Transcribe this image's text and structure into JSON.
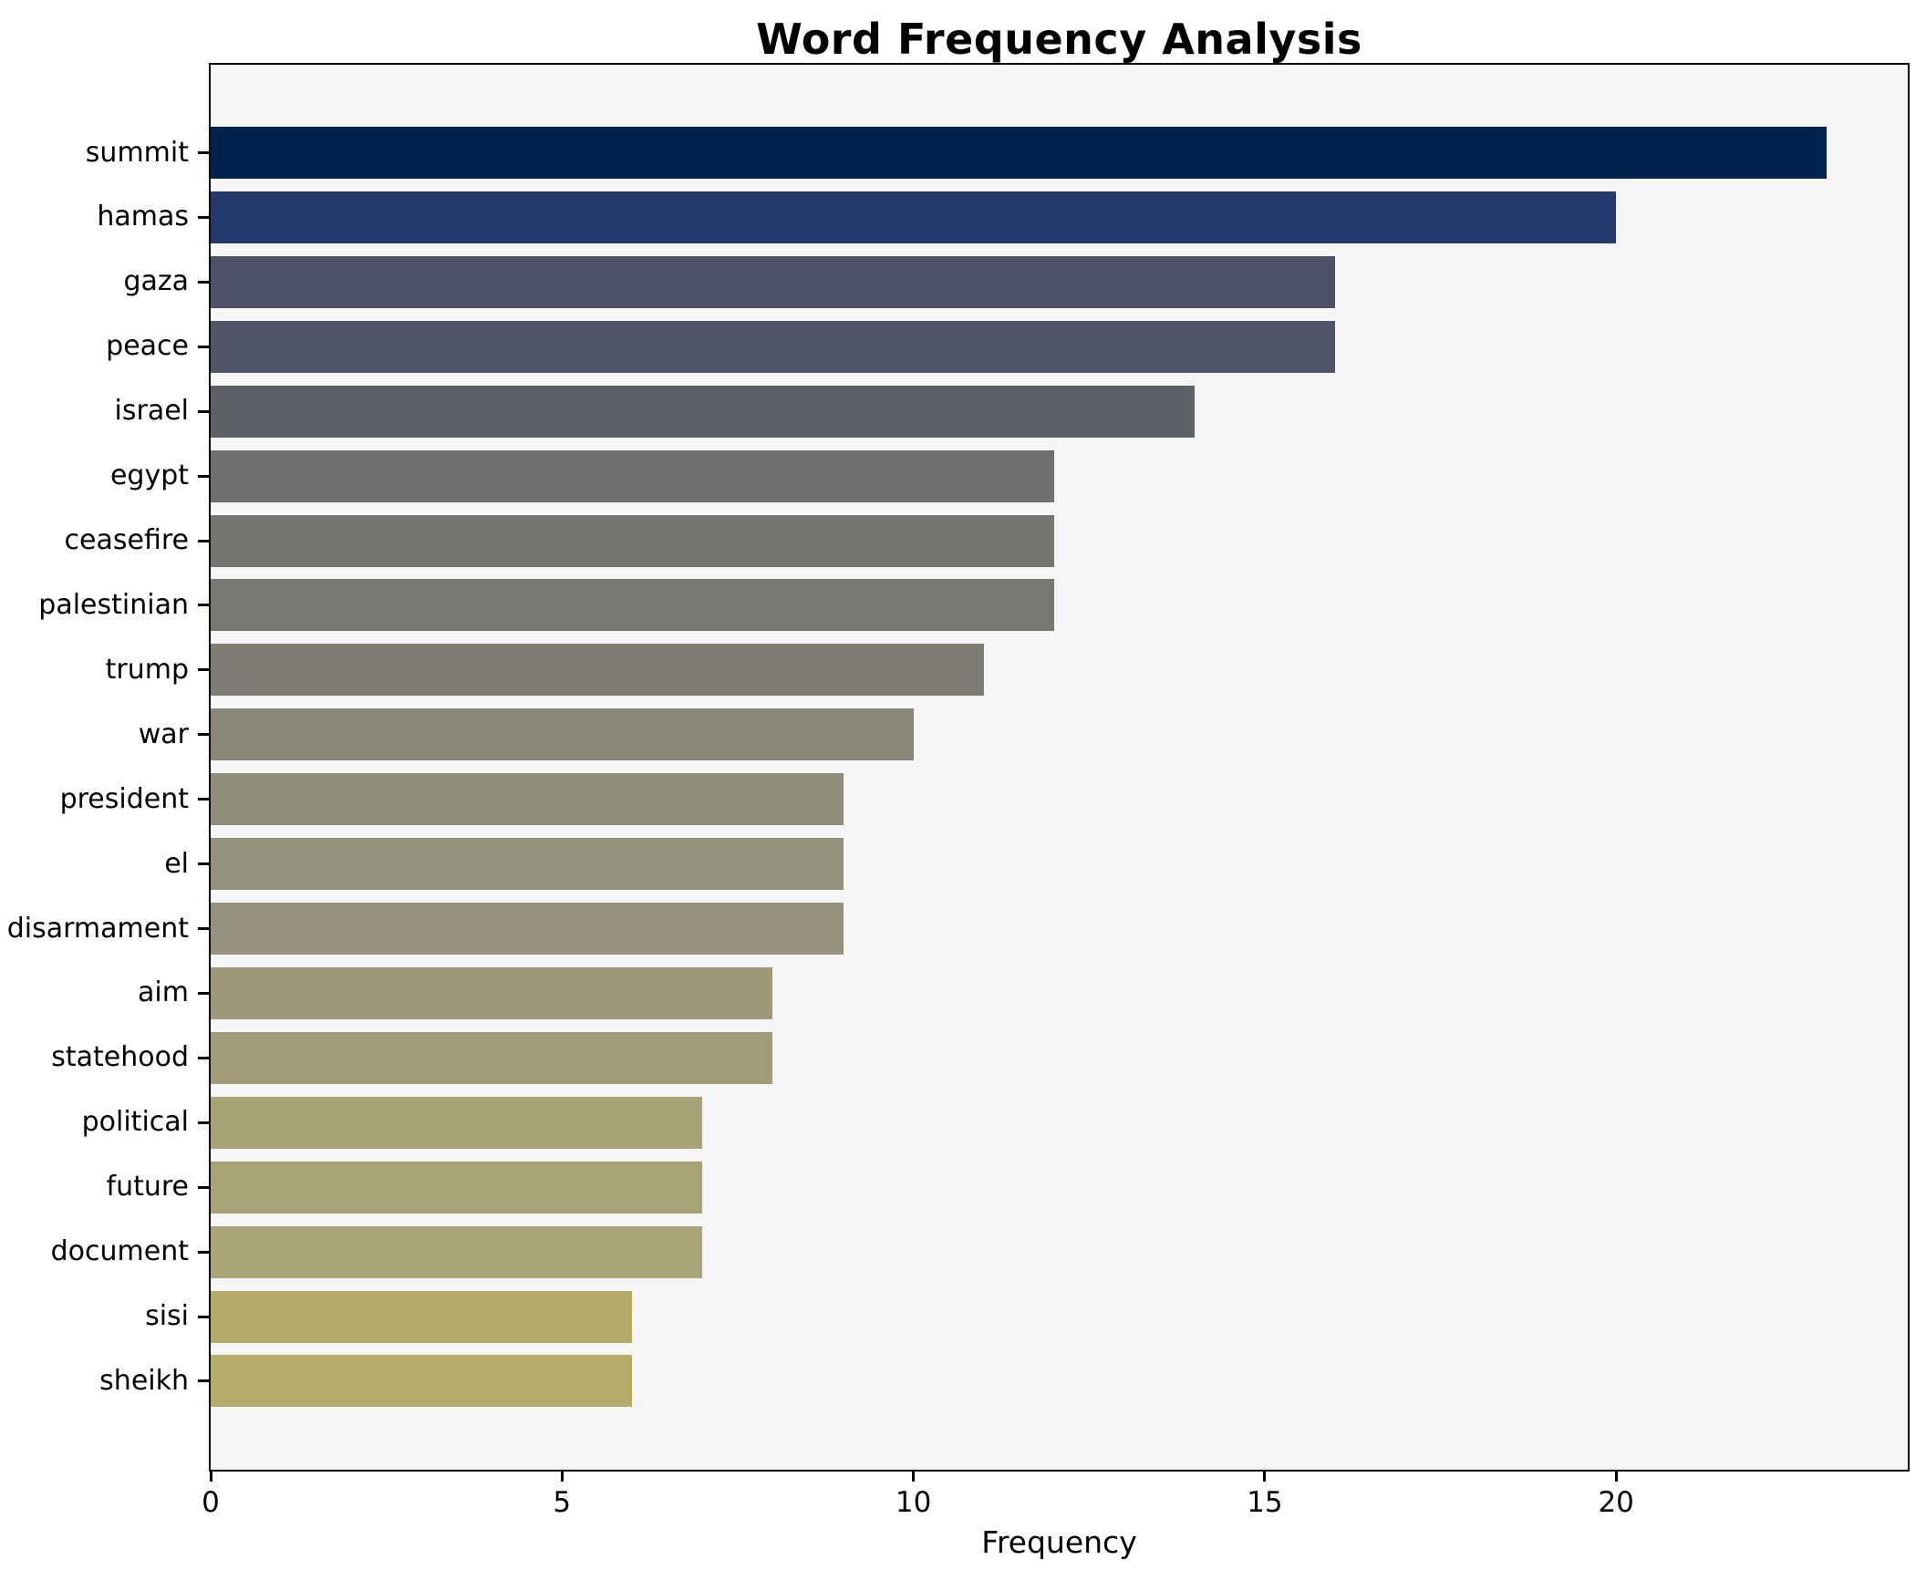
{
  "chart_data": {
    "type": "bar",
    "orientation": "horizontal",
    "title": "Word Frequency Analysis",
    "xlabel": "Frequency",
    "ylabel": "",
    "categories": [
      "summit",
      "hamas",
      "gaza",
      "peace",
      "israel",
      "egypt",
      "ceasefire",
      "palestinian",
      "trump",
      "war",
      "president",
      "el",
      "disarmament",
      "aim",
      "statehood",
      "political",
      "future",
      "document",
      "sisi",
      "sheikh"
    ],
    "values": [
      23,
      20,
      16,
      16,
      14,
      12,
      12,
      12,
      11,
      10,
      9,
      9,
      9,
      8,
      8,
      7,
      7,
      7,
      6,
      6
    ],
    "xticks": [
      0,
      5,
      10,
      15,
      20
    ],
    "xlim": [
      0,
      24.15
    ],
    "grid": false,
    "legend": "none",
    "bar_colors": [
      "#00224e",
      "#243a6c",
      "#4b5167",
      "#505569",
      "#5e6268",
      "#6f716f",
      "#747670",
      "#787973",
      "#7e7c73",
      "#898678",
      "#908c7a",
      "#93907c",
      "#96917d",
      "#9e9877",
      "#a19b78",
      "#a7a173",
      "#a9a274",
      "#aba476",
      "#b3aa68",
      "#b5ac69"
    ],
    "plot_background": "#f5f5f6",
    "figure_background": "#ffffff",
    "spine_color": "#000000",
    "text_color": "#000000"
  }
}
